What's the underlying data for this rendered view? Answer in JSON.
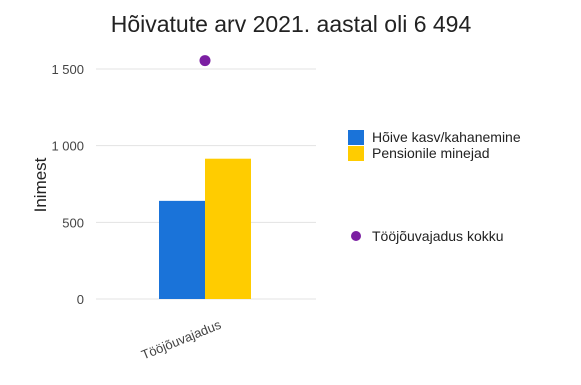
{
  "chart_data": {
    "type": "bar",
    "title": "Hõivatute arv 2021. aastal oli 6 494",
    "xlabel": "",
    "ylabel": "Inimest",
    "categories": [
      "Tööjõuvajadus"
    ],
    "ylim": [
      0,
      1650
    ],
    "yticks": [
      0,
      500,
      1000,
      1500
    ],
    "ytick_labels": [
      "0",
      "500",
      "1 000",
      "1 500"
    ],
    "grid": true,
    "legend_position": "right",
    "series": [
      {
        "name": "Hõive kasv/kahanemine",
        "kind": "bar",
        "color": "#1a73d9",
        "values": [
          640
        ]
      },
      {
        "name": "Pensionile minejad",
        "kind": "bar",
        "color": "#ffcc00",
        "values": [
          915
        ]
      },
      {
        "name": "Tööjõuvajadus kokku",
        "kind": "point",
        "color": "#7b1fa2",
        "values": [
          1555
        ]
      }
    ]
  }
}
